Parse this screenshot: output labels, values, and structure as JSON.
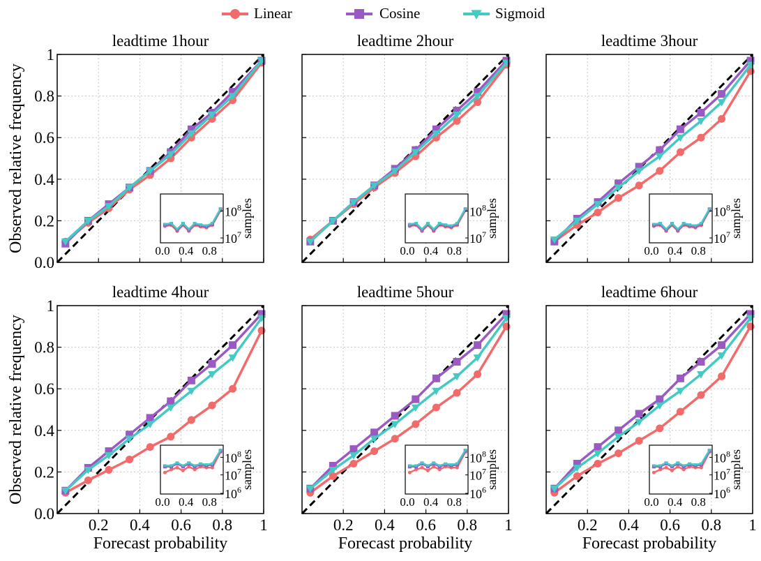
{
  "legend": {
    "items": [
      {
        "label": "Linear",
        "color": "#f26b6b",
        "marker": "circle"
      },
      {
        "label": "Cosine",
        "color": "#9b59c2",
        "marker": "square"
      },
      {
        "label": "Sigmoid",
        "color": "#45c9c3",
        "marker": "triangle-down"
      }
    ]
  },
  "axes": {
    "ylabel": "Observed relative frequency",
    "xlabel": "Forecast probability",
    "yticks": [
      "0.0",
      "0.2",
      "0.4",
      "0.6",
      "0.8",
      "1"
    ],
    "xticks": [
      "0.2",
      "0.4",
      "0.6",
      "0.8",
      "1"
    ],
    "inset_xticks": [
      "0.0",
      "0.4",
      "0.8"
    ],
    "inset_ylabel": "samples"
  },
  "colors": {
    "linear": "#f26b6b",
    "cosine": "#9b59c2",
    "sigmoid": "#45c9c3",
    "diagonal": "#000000"
  },
  "chart_data": [
    {
      "type": "line",
      "title": "leadtime 1hour",
      "xlabel": "",
      "ylabel": "Observed relative frequency",
      "xlim": [
        0,
        1
      ],
      "ylim": [
        0,
        1
      ],
      "grid": true,
      "x": [
        0.04,
        0.15,
        0.25,
        0.35,
        0.45,
        0.55,
        0.65,
        0.75,
        0.85,
        0.99
      ],
      "series": [
        {
          "name": "Linear",
          "values": [
            0.1,
            0.19,
            0.26,
            0.35,
            0.42,
            0.5,
            0.6,
            0.69,
            0.78,
            0.96
          ]
        },
        {
          "name": "Cosine",
          "values": [
            0.09,
            0.2,
            0.28,
            0.36,
            0.44,
            0.53,
            0.64,
            0.72,
            0.82,
            0.97
          ]
        },
        {
          "name": "Sigmoid",
          "values": [
            0.1,
            0.2,
            0.27,
            0.36,
            0.44,
            0.52,
            0.62,
            0.71,
            0.8,
            0.97
          ]
        }
      ],
      "inset": {
        "ylabel": "samples",
        "yticklabels": [
          "10^7",
          "10^8"
        ],
        "scale": "log",
        "ylim": [
          10000000.0,
          300000000.0
        ]
      }
    },
    {
      "type": "line",
      "title": "leadtime 2hour",
      "xlabel": "",
      "ylabel": "",
      "xlim": [
        0,
        1
      ],
      "ylim": [
        0,
        1
      ],
      "grid": true,
      "x": [
        0.04,
        0.15,
        0.25,
        0.35,
        0.45,
        0.55,
        0.65,
        0.75,
        0.85,
        0.99
      ],
      "series": [
        {
          "name": "Linear",
          "values": [
            0.11,
            0.2,
            0.28,
            0.36,
            0.43,
            0.51,
            0.6,
            0.68,
            0.77,
            0.95
          ]
        },
        {
          "name": "Cosine",
          "values": [
            0.1,
            0.2,
            0.29,
            0.37,
            0.45,
            0.54,
            0.64,
            0.73,
            0.82,
            0.97
          ]
        },
        {
          "name": "Sigmoid",
          "values": [
            0.1,
            0.2,
            0.29,
            0.37,
            0.44,
            0.53,
            0.62,
            0.71,
            0.8,
            0.96
          ]
        }
      ],
      "inset": {
        "ylabel": "samples",
        "yticklabels": [
          "10^7",
          "10^8"
        ],
        "scale": "log",
        "ylim": [
          10000000.0,
          300000000.0
        ]
      }
    },
    {
      "type": "line",
      "title": "leadtime 3hour",
      "xlabel": "",
      "ylabel": "",
      "xlim": [
        0,
        1
      ],
      "ylim": [
        0,
        1
      ],
      "grid": true,
      "x": [
        0.04,
        0.15,
        0.25,
        0.35,
        0.45,
        0.55,
        0.65,
        0.75,
        0.85,
        0.99
      ],
      "series": [
        {
          "name": "Linear",
          "values": [
            0.1,
            0.18,
            0.24,
            0.31,
            0.37,
            0.44,
            0.53,
            0.6,
            0.69,
            0.92
          ]
        },
        {
          "name": "Cosine",
          "values": [
            0.1,
            0.21,
            0.29,
            0.38,
            0.46,
            0.54,
            0.64,
            0.72,
            0.81,
            0.97
          ]
        },
        {
          "name": "Sigmoid",
          "values": [
            0.11,
            0.2,
            0.28,
            0.36,
            0.44,
            0.51,
            0.6,
            0.68,
            0.77,
            0.95
          ]
        }
      ],
      "inset": {
        "ylabel": "samples",
        "yticklabels": [
          "10^7",
          "10^8"
        ],
        "scale": "log",
        "ylim": [
          10000000.0,
          300000000.0
        ]
      }
    },
    {
      "type": "line",
      "title": "leadtime 4hour",
      "xlabel": "Forecast probability",
      "ylabel": "Observed relative frequency",
      "xlim": [
        0,
        1
      ],
      "ylim": [
        0,
        1
      ],
      "grid": true,
      "x": [
        0.04,
        0.15,
        0.25,
        0.35,
        0.45,
        0.55,
        0.65,
        0.75,
        0.85,
        0.99
      ],
      "series": [
        {
          "name": "Linear",
          "values": [
            0.1,
            0.16,
            0.21,
            0.26,
            0.32,
            0.37,
            0.45,
            0.52,
            0.6,
            0.88
          ]
        },
        {
          "name": "Cosine",
          "values": [
            0.11,
            0.22,
            0.3,
            0.38,
            0.46,
            0.54,
            0.64,
            0.72,
            0.81,
            0.96
          ]
        },
        {
          "name": "Sigmoid",
          "values": [
            0.11,
            0.21,
            0.28,
            0.36,
            0.43,
            0.51,
            0.59,
            0.67,
            0.75,
            0.94
          ]
        }
      ],
      "inset": {
        "ylabel": "samples",
        "yticklabels": [
          "10^6",
          "10^7",
          "10^8"
        ],
        "scale": "log",
        "ylim": [
          1000000.0,
          300000000.0
        ]
      }
    },
    {
      "type": "line",
      "title": "leadtime 5hour",
      "xlabel": "Forecast probability",
      "ylabel": "",
      "xlim": [
        0,
        1
      ],
      "ylim": [
        0,
        1
      ],
      "grid": true,
      "x": [
        0.04,
        0.15,
        0.25,
        0.35,
        0.45,
        0.55,
        0.65,
        0.75,
        0.85,
        0.99
      ],
      "series": [
        {
          "name": "Linear",
          "values": [
            0.1,
            0.18,
            0.24,
            0.3,
            0.36,
            0.43,
            0.51,
            0.58,
            0.67,
            0.9
          ]
        },
        {
          "name": "Cosine",
          "values": [
            0.12,
            0.23,
            0.31,
            0.39,
            0.47,
            0.55,
            0.65,
            0.73,
            0.81,
            0.96
          ]
        },
        {
          "name": "Sigmoid",
          "values": [
            0.12,
            0.21,
            0.28,
            0.36,
            0.43,
            0.51,
            0.59,
            0.66,
            0.75,
            0.94
          ]
        }
      ],
      "inset": {
        "ylabel": "samples",
        "yticklabels": [
          "10^6",
          "10^7",
          "10^8"
        ],
        "scale": "log",
        "ylim": [
          1000000.0,
          300000000.0
        ]
      }
    },
    {
      "type": "line",
      "title": "leadtime 6hour",
      "xlabel": "Forecast probability",
      "ylabel": "",
      "xlim": [
        0,
        1
      ],
      "ylim": [
        0,
        1
      ],
      "grid": true,
      "x": [
        0.04,
        0.15,
        0.25,
        0.35,
        0.45,
        0.55,
        0.65,
        0.75,
        0.85,
        0.99
      ],
      "series": [
        {
          "name": "Linear",
          "values": [
            0.1,
            0.18,
            0.24,
            0.29,
            0.35,
            0.41,
            0.49,
            0.57,
            0.66,
            0.9
          ]
        },
        {
          "name": "Cosine",
          "values": [
            0.12,
            0.24,
            0.32,
            0.4,
            0.48,
            0.55,
            0.65,
            0.73,
            0.81,
            0.96
          ]
        },
        {
          "name": "Sigmoid",
          "values": [
            0.12,
            0.22,
            0.29,
            0.37,
            0.44,
            0.52,
            0.59,
            0.67,
            0.76,
            0.94
          ]
        }
      ],
      "inset": {
        "ylabel": "samples",
        "yticklabels": [
          "10^6",
          "10^7",
          "10^8"
        ],
        "scale": "log",
        "ylim": [
          1000000.0,
          300000000.0
        ]
      }
    }
  ]
}
